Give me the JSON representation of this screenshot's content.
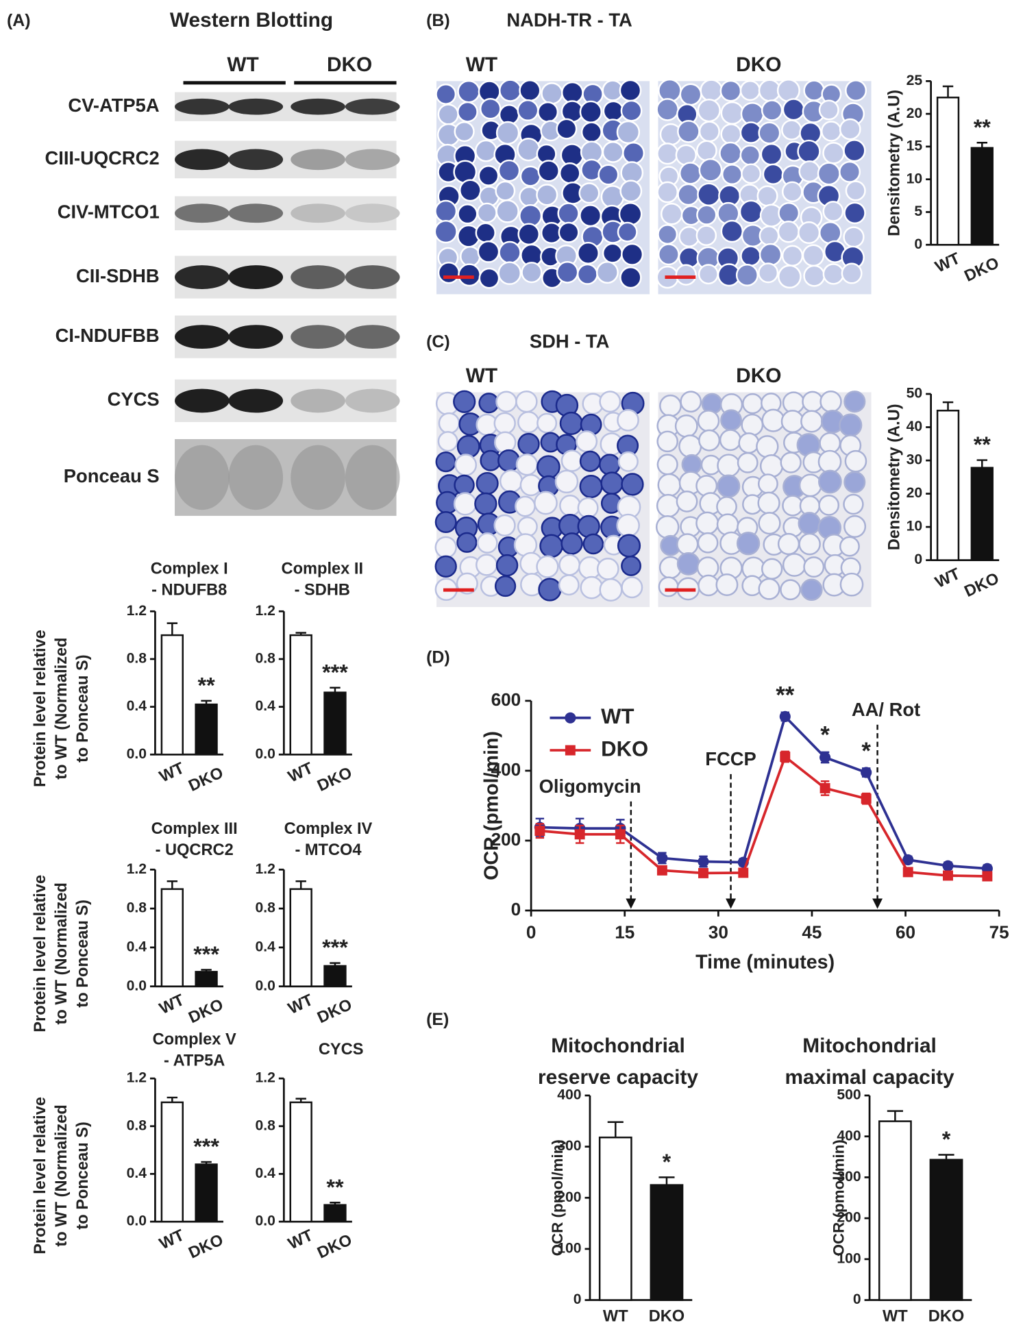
{
  "figure": {
    "panel_labels": [
      "(A)",
      "(B)",
      "(C)",
      "(D)",
      "(E)"
    ],
    "western_blot": {
      "title": "Western Blotting",
      "groups": [
        "WT",
        "DKO"
      ],
      "rows": [
        "CV-ATP5A",
        "CIII-UQCRC2",
        "CIV-MTCO1",
        "CII-SDHB",
        "CI-NDUFBB",
        "CYCS",
        "Ponceau S"
      ]
    },
    "staining": [
      {
        "title": "NADH-TR - TA",
        "groups": [
          "WT",
          "DKO"
        ]
      },
      {
        "title": "SDH - TA",
        "groups": [
          "WT",
          "DKO"
        ]
      }
    ]
  },
  "chart_data": [
    {
      "type": "bar",
      "title": [
        "Complex I",
        "- NDUFB8"
      ],
      "ylabel": [
        "Protein level relative",
        "to WT (Normalized",
        "to Ponceau S)"
      ],
      "categories": [
        "WT",
        "DKO"
      ],
      "values": [
        1.0,
        0.42
      ],
      "errors": [
        0.1,
        0.03
      ],
      "colors": [
        "#ffffff",
        "#111111"
      ],
      "ylim": [
        0,
        1.2
      ],
      "yticks": [
        {
          "value": 0,
          "label": "0.0"
        },
        0.4,
        0.8,
        1.2
      ],
      "significance": "**"
    },
    {
      "type": "bar",
      "title": [
        "Complex II",
        "- SDHB"
      ],
      "categories": [
        "WT",
        "DKO"
      ],
      "values": [
        1.0,
        0.52
      ],
      "errors": [
        0.02,
        0.04
      ],
      "colors": [
        "#ffffff",
        "#111111"
      ],
      "ylim": [
        0,
        1.2
      ],
      "yticks": [
        {
          "value": 0,
          "label": "0.0"
        },
        0.4,
        0.8,
        1.2
      ],
      "significance": "***"
    },
    {
      "type": "bar",
      "title": [
        "Complex III",
        "- UQCRC2"
      ],
      "ylabel": [
        "Protein level relative",
        "to WT (Normalized",
        "to Ponceau S)"
      ],
      "categories": [
        "WT",
        "DKO"
      ],
      "values": [
        1.0,
        0.15
      ],
      "errors": [
        0.08,
        0.02
      ],
      "colors": [
        "#ffffff",
        "#111111"
      ],
      "ylim": [
        0,
        1.2
      ],
      "yticks": [
        {
          "value": 0,
          "label": "0.0"
        },
        0.4,
        0.8,
        1.2
      ],
      "significance": "***"
    },
    {
      "type": "bar",
      "title": [
        "Complex IV",
        "- MTCO4"
      ],
      "categories": [
        "WT",
        "DKO"
      ],
      "values": [
        1.0,
        0.21
      ],
      "errors": [
        0.08,
        0.03
      ],
      "colors": [
        "#ffffff",
        "#111111"
      ],
      "ylim": [
        0,
        1.2
      ],
      "yticks": [
        {
          "value": 0,
          "label": "0.0"
        },
        0.4,
        0.8,
        1.2
      ],
      "significance": "***"
    },
    {
      "type": "bar",
      "title": [
        "Complex V",
        "- ATP5A"
      ],
      "ylabel": [
        "Protein level relative",
        "to WT (Normalized",
        "to Ponceau S)"
      ],
      "categories": [
        "WT",
        "DKO"
      ],
      "values": [
        1.0,
        0.48
      ],
      "errors": [
        0.04,
        0.02
      ],
      "colors": [
        "#ffffff",
        "#111111"
      ],
      "ylim": [
        0,
        1.2
      ],
      "yticks": [
        {
          "value": 0,
          "label": "0.0"
        },
        0.4,
        0.8,
        1.2
      ],
      "significance": "***"
    },
    {
      "type": "bar",
      "title": [
        "CYCS"
      ],
      "categories": [
        "WT",
        "DKO"
      ],
      "values": [
        1.0,
        0.14
      ],
      "errors": [
        0.03,
        0.02
      ],
      "colors": [
        "#ffffff",
        "#111111"
      ],
      "ylim": [
        0,
        1.2
      ],
      "yticks": [
        {
          "value": 0,
          "label": "0.0"
        },
        0.4,
        0.8,
        1.2
      ],
      "significance": "**"
    },
    {
      "type": "bar",
      "ylabel": [
        "Densitometry (A.U)"
      ],
      "categories": [
        "WT",
        "DKO"
      ],
      "values": [
        22.5,
        14.8
      ],
      "errors": [
        1.7,
        0.8
      ],
      "colors": [
        "#ffffff",
        "#111111"
      ],
      "ylim": [
        0,
        25
      ],
      "yticks": [
        0,
        5,
        10,
        15,
        20,
        25
      ],
      "significance": "**"
    },
    {
      "type": "bar",
      "ylabel": [
        "Densitometry (A.U)"
      ],
      "categories": [
        "WT",
        "DKO"
      ],
      "values": [
        45,
        27.8
      ],
      "errors": [
        2.5,
        2.3
      ],
      "colors": [
        "#ffffff",
        "#111111"
      ],
      "ylim": [
        0,
        50
      ],
      "yticks": [
        0,
        10,
        20,
        30,
        40,
        50
      ],
      "significance": "**"
    },
    {
      "type": "line",
      "xlabel": "Time (minutes)",
      "ylabel": [
        "OCR (pmol/min)"
      ],
      "x": [
        1.4,
        7.8,
        14.3,
        21,
        27.6,
        34,
        40.7,
        47.1,
        53.7,
        60.4,
        66.8,
        73.1
      ],
      "series": [
        {
          "name": "WT",
          "color": "#2e3192",
          "marker": "circle",
          "values": [
            238,
            235,
            235,
            150,
            140,
            138,
            555,
            438,
            395,
            145,
            128,
            120
          ],
          "errors": [
            25,
            28,
            25,
            15,
            15,
            10,
            12,
            15,
            12,
            10,
            10,
            10
          ]
        },
        {
          "name": "DKO",
          "color": "#d7262b",
          "marker": "square",
          "values": [
            228,
            218,
            218,
            115,
            107,
            108,
            440,
            350,
            320,
            110,
            100,
            98
          ],
          "errors": [
            20,
            25,
            25,
            12,
            10,
            8,
            15,
            20,
            15,
            8,
            8,
            8
          ]
        }
      ],
      "xlim": [
        0,
        75
      ],
      "xticks": [
        0,
        15,
        30,
        45,
        60,
        75
      ],
      "ylim": [
        0,
        600
      ],
      "yticks": [
        0,
        200,
        400,
        600
      ],
      "legend": "upper left",
      "injections": [
        {
          "label": "Oligomycin",
          "x": 16
        },
        {
          "label": "FCCP",
          "x": 32
        },
        {
          "label": "AA/ Rot",
          "x": 55.5
        }
      ],
      "significance": [
        {
          "x": 40.7,
          "label": "**"
        },
        {
          "x": 47.1,
          "label": "*"
        },
        {
          "x": 53.7,
          "label": "*"
        }
      ]
    },
    {
      "type": "bar",
      "title": [
        "Mitochondrial",
        "reserve capacity"
      ],
      "ylabel": [
        "OCR (pmol/min)"
      ],
      "categories": [
        "WT",
        "DKO"
      ],
      "values": [
        318,
        225
      ],
      "errors": [
        30,
        15
      ],
      "colors": [
        "#ffffff",
        "#111111"
      ],
      "ylim": [
        0,
        400
      ],
      "yticks": [
        0,
        100,
        200,
        300,
        400
      ],
      "significance": "*"
    },
    {
      "type": "bar",
      "title": [
        "Mitochondrial",
        "maximal capacity"
      ],
      "ylabel": [
        "OCR (pmol/min)"
      ],
      "categories": [
        "WT",
        "DKO"
      ],
      "values": [
        437,
        343
      ],
      "errors": [
        25,
        12
      ],
      "colors": [
        "#ffffff",
        "#111111"
      ],
      "ylim": [
        0,
        500
      ],
      "yticks": [
        0,
        100,
        200,
        300,
        400,
        500
      ],
      "significance": "*"
    }
  ]
}
